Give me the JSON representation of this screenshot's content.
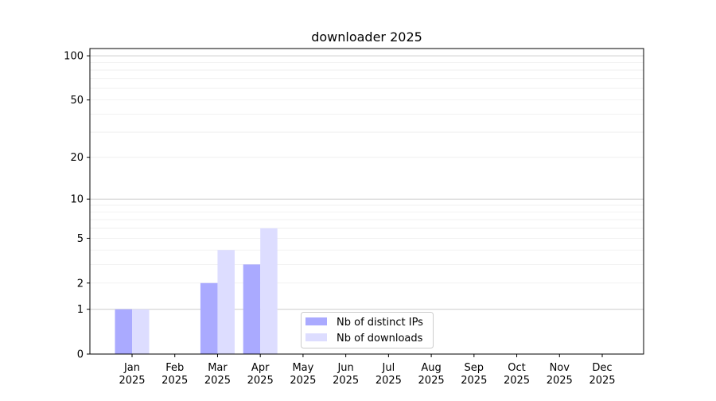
{
  "chart_data": {
    "type": "bar",
    "title": "downloader 2025",
    "xlabel": "",
    "ylabel": "",
    "yscale": "log(1+y)",
    "ylim": [
      0,
      112
    ],
    "yticks": [
      0,
      1,
      2,
      5,
      10,
      20,
      50,
      100
    ],
    "grid": true,
    "legend": "lower-center",
    "categories": [
      "Jan\n2025",
      "Feb\n2025",
      "Mar\n2025",
      "Apr\n2025",
      "May\n2025",
      "Jun\n2025",
      "Jul\n2025",
      "Aug\n2025",
      "Sep\n2025",
      "Oct\n2025",
      "Nov\n2025",
      "Dec\n2025"
    ],
    "series": [
      {
        "name": "Nb of distinct IPs",
        "color": "#aaaaff",
        "values": [
          1,
          0,
          2,
          3,
          0,
          0,
          0,
          0,
          0,
          0,
          0,
          0
        ]
      },
      {
        "name": "Nb of downloads",
        "color": "#ddddff",
        "values": [
          1,
          0,
          4,
          6,
          0,
          0,
          0,
          0,
          0,
          0,
          0,
          0
        ]
      }
    ]
  }
}
